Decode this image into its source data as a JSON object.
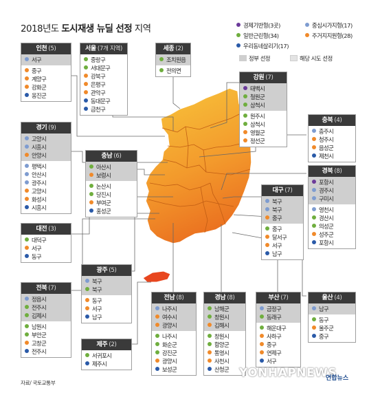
{
  "title": {
    "year": "2018년도",
    "bold": "도시재생 뉴딜 선정",
    "rest": "지역"
  },
  "legend": {
    "types": [
      {
        "label": "경제기반형(3곳)",
        "color": "#6b3a9a"
      },
      {
        "label": "중심시가지형(17)",
        "color": "#7e9cd0"
      },
      {
        "label": "일반근린형(34)",
        "color": "#6fae3e"
      },
      {
        "label": "주거지지원형(28)",
        "color": "#f08a2a"
      },
      {
        "label": "우리동네살리기(17)",
        "color": "#2a5aa8"
      }
    ],
    "gov_label": "정부 선정",
    "city_label": "해당 시도 선정"
  },
  "regions": [
    {
      "name": "인천",
      "count": "(5)",
      "gov": [
        {
          "t": "서구",
          "c": "d2"
        }
      ],
      "city": [
        {
          "t": "중구",
          "c": "d4"
        },
        {
          "t": "계양구",
          "c": "d4"
        },
        {
          "t": "강화군",
          "c": "d4"
        },
        {
          "t": "옹진군",
          "c": "d5"
        }
      ]
    },
    {
      "name": "서울",
      "count": "(7개 지역)",
      "gov": [],
      "plain": [
        {
          "t": "중랑구",
          "c": "d3"
        },
        {
          "t": "서대문구",
          "c": "d3"
        },
        {
          "t": "강북구",
          "c": "d4"
        },
        {
          "t": "은평구",
          "c": "d4"
        },
        {
          "t": "관악구",
          "c": "d4"
        },
        {
          "t": "동대문구",
          "c": "d5"
        },
        {
          "t": "금천구",
          "c": "d5"
        }
      ]
    },
    {
      "name": "세종",
      "count": "(2)",
      "gov": [
        {
          "t": "조치원읍",
          "c": "d3"
        }
      ],
      "city": [
        {
          "t": "전의면",
          "c": "d3"
        }
      ]
    },
    {
      "name": "강원",
      "count": "(7)",
      "gov": [
        {
          "t": "태백시",
          "c": "d1"
        },
        {
          "t": "철원군",
          "c": "d3"
        },
        {
          "t": "삼척시",
          "c": "d3"
        }
      ],
      "city": [
        {
          "t": "원주시",
          "c": "d3"
        },
        {
          "t": "삼척시",
          "c": "d3"
        },
        {
          "t": "영월군",
          "c": "d4"
        },
        {
          "t": "정선군",
          "c": "d4"
        }
      ]
    },
    {
      "name": "경기",
      "count": "(9)",
      "gov": [
        {
          "t": "고양시",
          "c": "d2"
        },
        {
          "t": "시흥시",
          "c": "d2"
        },
        {
          "t": "안양시",
          "c": "d4"
        }
      ],
      "city": [
        {
          "t": "평택시",
          "c": "d2"
        },
        {
          "t": "안산시",
          "c": "d2"
        },
        {
          "t": "광주시",
          "c": "d2"
        },
        {
          "t": "고양시",
          "c": "d4"
        },
        {
          "t": "화성시",
          "c": "d4"
        },
        {
          "t": "시흥시",
          "c": "d5"
        }
      ]
    },
    {
      "name": "충북",
      "count": "(4)",
      "gov": [],
      "city": [
        {
          "t": "충주시",
          "c": "d2"
        },
        {
          "t": "청주시",
          "c": "d4"
        },
        {
          "t": "음성군",
          "c": "d4"
        },
        {
          "t": "제천시",
          "c": "d5"
        }
      ]
    },
    {
      "name": "충남",
      "count": "(6)",
      "gov": [
        {
          "t": "아산시",
          "c": "d3"
        },
        {
          "t": "보령시",
          "c": "d4"
        }
      ],
      "city": [
        {
          "t": "논산시",
          "c": "d3"
        },
        {
          "t": "당진시",
          "c": "d3"
        },
        {
          "t": "부여군",
          "c": "d4"
        },
        {
          "t": "홍성군",
          "c": "d5"
        }
      ]
    },
    {
      "name": "경북",
      "count": "(8)",
      "gov": [
        {
          "t": "포항시",
          "c": "d1"
        },
        {
          "t": "경주시",
          "c": "d2"
        },
        {
          "t": "구미시",
          "c": "d2"
        }
      ],
      "city": [
        {
          "t": "영천시",
          "c": "d2"
        },
        {
          "t": "경산시",
          "c": "d3"
        },
        {
          "t": "의성군",
          "c": "d3"
        },
        {
          "t": "성주군",
          "c": "d4"
        },
        {
          "t": "포항시",
          "c": "d5"
        }
      ]
    },
    {
      "name": "대구",
      "count": "(7)",
      "gov": [
        {
          "t": "북구",
          "c": "d2"
        },
        {
          "t": "북구",
          "c": "d2"
        },
        {
          "t": "중구",
          "c": "d4"
        }
      ],
      "city": [
        {
          "t": "중구",
          "c": "d3"
        },
        {
          "t": "달서구",
          "c": "d4"
        },
        {
          "t": "서구",
          "c": "d4"
        },
        {
          "t": "남구",
          "c": "d5"
        }
      ]
    },
    {
      "name": "대전",
      "count": "(3)",
      "gov": [],
      "city": [
        {
          "t": "대덕구",
          "c": "d3"
        },
        {
          "t": "서구",
          "c": "d4"
        },
        {
          "t": "동구",
          "c": "d5"
        }
      ]
    },
    {
      "name": "광주",
      "count": "(5)",
      "gov": [
        {
          "t": "북구",
          "c": "d2"
        },
        {
          "t": "북구",
          "c": "d3"
        }
      ],
      "city": [
        {
          "t": "동구",
          "c": "d4"
        },
        {
          "t": "서구",
          "c": "d4"
        },
        {
          "t": "남구",
          "c": "d5"
        }
      ]
    },
    {
      "name": "전북",
      "count": "(7)",
      "gov": [
        {
          "t": "정읍시",
          "c": "d2"
        },
        {
          "t": "전주시",
          "c": "d3"
        },
        {
          "t": "김제시",
          "c": "d3"
        }
      ],
      "city": [
        {
          "t": "남원시",
          "c": "d3"
        },
        {
          "t": "부안군",
          "c": "d3"
        },
        {
          "t": "고창군",
          "c": "d4"
        },
        {
          "t": "전주시",
          "c": "d5"
        }
      ]
    },
    {
      "name": "전남",
      "count": "(8)",
      "gov": [
        {
          "t": "나주시",
          "c": "d2"
        },
        {
          "t": "여수시",
          "c": "d4"
        },
        {
          "t": "광양시",
          "c": "d4"
        }
      ],
      "city": [
        {
          "t": "나주시",
          "c": "d3"
        },
        {
          "t": "화순군",
          "c": "d3"
        },
        {
          "t": "강진군",
          "c": "d3"
        },
        {
          "t": "광양시",
          "c": "d4"
        },
        {
          "t": "보성군",
          "c": "d5"
        }
      ]
    },
    {
      "name": "경남",
      "count": "(8)",
      "gov": [
        {
          "t": "남해군",
          "c": "d3"
        },
        {
          "t": "창원시",
          "c": "d3"
        },
        {
          "t": "김해시",
          "c": "d4"
        }
      ],
      "city": [
        {
          "t": "창원시",
          "c": "d3"
        },
        {
          "t": "함양군",
          "c": "d3"
        },
        {
          "t": "통영시",
          "c": "d4"
        },
        {
          "t": "사천시",
          "c": "d4"
        },
        {
          "t": "산청군",
          "c": "d5"
        }
      ]
    },
    {
      "name": "부산",
      "count": "(7)",
      "gov": [
        {
          "t": "금정구",
          "c": "d2"
        },
        {
          "t": "동래구",
          "c": "d3"
        }
      ],
      "city": [
        {
          "t": "해운대구",
          "c": "d3"
        },
        {
          "t": "사하구",
          "c": "d4"
        },
        {
          "t": "중구",
          "c": "d4"
        },
        {
          "t": "연제구",
          "c": "d4"
        },
        {
          "t": "서구",
          "c": "d5"
        }
      ]
    },
    {
      "name": "울산",
      "count": "(4)",
      "gov": [
        {
          "t": "남구",
          "c": "d2"
        }
      ],
      "city": [
        {
          "t": "동구",
          "c": "d3"
        },
        {
          "t": "울주군",
          "c": "d4"
        },
        {
          "t": "중구",
          "c": "d5"
        }
      ]
    },
    {
      "name": "제주",
      "count": "(2)",
      "gov": [],
      "city": [
        {
          "t": "서귀포시",
          "c": "d3"
        },
        {
          "t": "제주시",
          "c": "d5"
        }
      ]
    }
  ],
  "source": "자료/ 국토교통부",
  "watermark": "YONHAPNEWS",
  "watermark_brand": "연합뉴스"
}
